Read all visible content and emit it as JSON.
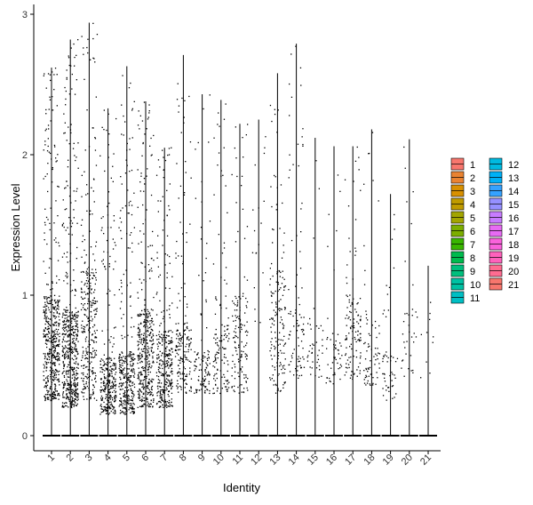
{
  "chart_data": {
    "type": "scatter",
    "subtype": "violin-jitter",
    "xlabel": "Identity",
    "ylabel": "Expression Level",
    "categories": [
      "1",
      "2",
      "3",
      "4",
      "5",
      "6",
      "7",
      "8",
      "9",
      "10",
      "11",
      "12",
      "13",
      "14",
      "15",
      "16",
      "17",
      "18",
      "19",
      "20",
      "21"
    ],
    "yticks": [
      "0",
      "1",
      "2",
      "3"
    ],
    "ylim": [
      -0.15,
      3.1
    ],
    "grid": false,
    "legend_position": "right",
    "max_values": [
      2.62,
      2.82,
      2.94,
      2.33,
      2.63,
      2.38,
      2.05,
      2.71,
      2.43,
      2.39,
      2.22,
      2.25,
      2.58,
      2.79,
      2.12,
      2.06,
      2.06,
      2.18,
      1.72,
      2.11,
      1.21
    ],
    "dense_ranges": [
      [
        0.25,
        1.0
      ],
      [
        0.2,
        0.9
      ],
      [
        0.25,
        1.2
      ],
      [
        0.15,
        0.55
      ],
      [
        0.15,
        0.6
      ],
      [
        0.2,
        0.9
      ],
      [
        0.2,
        0.75
      ],
      [
        0.3,
        0.8
      ],
      [
        0.3,
        0.6
      ],
      [
        0.3,
        0.8
      ],
      [
        0.3,
        1.0
      ],
      [
        0.0,
        0.0
      ],
      [
        0.3,
        1.2
      ],
      [
        0.4,
        0.9
      ],
      [
        0.4,
        0.8
      ],
      [
        0.35,
        0.7
      ],
      [
        0.4,
        1.0
      ],
      [
        0.35,
        0.8
      ],
      [
        0.25,
        0.6
      ],
      [
        0.4,
        0.9
      ],
      [
        0.4,
        0.9
      ]
    ],
    "point_counts": [
      520,
      560,
      320,
      320,
      330,
      400,
      330,
      180,
      110,
      130,
      140,
      18,
      160,
      90,
      40,
      50,
      120,
      70,
      50,
      35,
      10
    ],
    "series": [
      {
        "name": "1",
        "color": "#F8766D"
      },
      {
        "name": "2",
        "color": "#EA8331"
      },
      {
        "name": "3",
        "color": "#D89000"
      },
      {
        "name": "4",
        "color": "#C09B00"
      },
      {
        "name": "5",
        "color": "#A3A500"
      },
      {
        "name": "6",
        "color": "#7CAE00"
      },
      {
        "name": "7",
        "color": "#39B600"
      },
      {
        "name": "8",
        "color": "#00BB4E"
      },
      {
        "name": "9",
        "color": "#00BF7D"
      },
      {
        "name": "10",
        "color": "#00C1A3"
      },
      {
        "name": "11",
        "color": "#00BFC4"
      },
      {
        "name": "12",
        "color": "#00BAE0"
      },
      {
        "name": "13",
        "color": "#00B0F6"
      },
      {
        "name": "14",
        "color": "#35A2FF"
      },
      {
        "name": "15",
        "color": "#9590FF"
      },
      {
        "name": "16",
        "color": "#C77CFF"
      },
      {
        "name": "17",
        "color": "#E76BF3"
      },
      {
        "name": "18",
        "color": "#FA62DB"
      },
      {
        "name": "19",
        "color": "#FF62BC"
      },
      {
        "name": "20",
        "color": "#FF6C91"
      },
      {
        "name": "21",
        "color": "#F8766D"
      }
    ]
  }
}
